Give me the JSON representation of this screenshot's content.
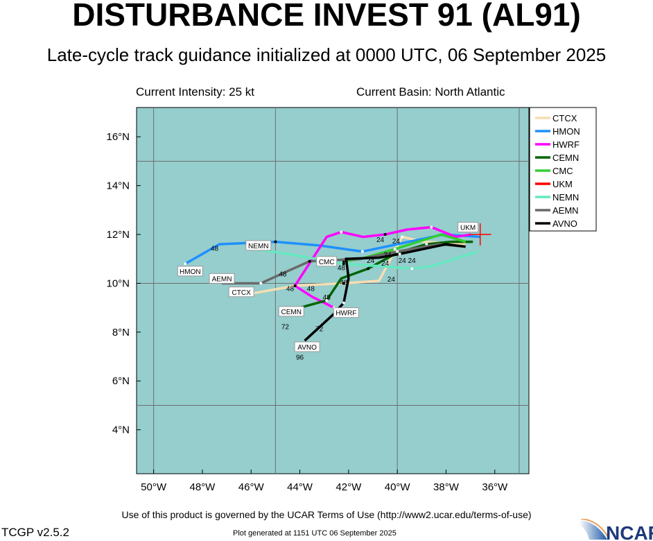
{
  "header": {
    "title": "DISTURBANCE INVEST 91 (AL91)",
    "subtitle": "Late-cycle track guidance initialized at 0000 UTC, 06 September 2025",
    "intensity": "Current Intensity: 25 kt",
    "basin": "Current Basin: North Atlantic"
  },
  "footer": {
    "terms": "Use of this product is governed by the UCAR Terms of Use (http://www2.ucar.edu/terms-of-use)",
    "version": "TCGP v2.5.2",
    "generated": "Plot generated at 1151 UTC   06 September 2025",
    "logo_text": "NCAR"
  },
  "colors": {
    "ocean": "#96cdcd",
    "grid": "#6e6e6e"
  },
  "chart_data": {
    "type": "line",
    "lon_range": [
      -50.7,
      -34.6
    ],
    "lat_range": [
      2.2,
      17.2
    ],
    "x_ticks": [
      {
        "v": -50,
        "label": "50°W"
      },
      {
        "v": -48,
        "label": "48°W"
      },
      {
        "v": -46,
        "label": "46°W"
      },
      {
        "v": -44,
        "label": "44°W"
      },
      {
        "v": -42,
        "label": "42°W"
      },
      {
        "v": -40,
        "label": "40°W"
      },
      {
        "v": -38,
        "label": "38°W"
      },
      {
        "v": -36,
        "label": "36°W"
      }
    ],
    "y_ticks": [
      {
        "v": 16,
        "label": "16°N"
      },
      {
        "v": 14,
        "label": "14°N"
      },
      {
        "v": 12,
        "label": "12°N"
      },
      {
        "v": 10,
        "label": "10°N"
      },
      {
        "v": 8,
        "label": "8°N"
      },
      {
        "v": 6,
        "label": "6°N"
      },
      {
        "v": 4,
        "label": "4°N"
      }
    ],
    "grid_lon": [
      -50,
      -45,
      -40,
      -35
    ],
    "grid_lat": [
      15,
      10,
      5
    ],
    "current_position": {
      "lon": -36.6,
      "lat": 12.0
    },
    "series": [
      {
        "name": "CTCX",
        "color": "#f5deb3",
        "label_at": [
          -46.4,
          9.65
        ],
        "points": [
          [
            -37.2,
            11.6
          ],
          [
            -38.9,
            11.7
          ],
          [
            -39.8,
            11.9
          ],
          [
            -40.75,
            10.1
          ],
          [
            -42.2,
            10.0
          ],
          [
            -44.2,
            9.9
          ],
          [
            -46.4,
            9.5
          ]
        ]
      },
      {
        "name": "HMON",
        "color": "#1e90ff",
        "label_at": [
          -48.5,
          10.5
        ],
        "points": [
          [
            -36.6,
            11.9
          ],
          [
            -38.1,
            12.0
          ],
          [
            -41.43,
            11.3
          ],
          [
            -43.2,
            11.55
          ],
          [
            -45.0,
            11.7
          ],
          [
            -47.3,
            11.6
          ],
          [
            -48.7,
            10.8
          ]
        ]
      },
      {
        "name": "HWRF",
        "color": "#ff00ff",
        "label_at": [
          -42.1,
          8.8
        ],
        "points": [
          [
            -37.0,
            12.0
          ],
          [
            -37.6,
            11.9
          ],
          [
            -38.6,
            12.3
          ],
          [
            -39.6,
            12.2
          ],
          [
            -40.5,
            12.0
          ],
          [
            -41.4,
            11.9
          ],
          [
            -42.3,
            12.1
          ],
          [
            -42.9,
            11.9
          ],
          [
            -44.2,
            9.9
          ],
          [
            -43.5,
            9.45
          ],
          [
            -42.6,
            9.0
          ]
        ]
      },
      {
        "name": "CEMN",
        "color": "#006400",
        "label_at": [
          -44.35,
          8.85
        ],
        "points": [
          [
            -36.9,
            11.7
          ],
          [
            -37.8,
            11.7
          ],
          [
            -38.8,
            11.6
          ],
          [
            -40.0,
            11.25
          ],
          [
            -41.2,
            10.6
          ],
          [
            -42.3,
            10.2
          ],
          [
            -42.9,
            9.3
          ],
          [
            -44.0,
            9.0
          ]
        ]
      },
      {
        "name": "CMC",
        "color": "#32cd32",
        "label_at": [
          -42.9,
          10.9
        ],
        "points": [
          [
            -37.2,
            11.7
          ],
          [
            -38.2,
            12.0
          ],
          [
            -40.1,
            11.4
          ],
          [
            -41.5,
            11.0
          ],
          [
            -42.2,
            10.9
          ]
        ]
      },
      {
        "name": "UKM",
        "color": "#ff0000",
        "label_at": [
          -37.1,
          12.3
        ],
        "points": [
          [
            -36.6,
            12.0
          ]
        ]
      },
      {
        "name": "NEMN",
        "color": "#66e8c0",
        "label_at": [
          -45.7,
          11.55
        ],
        "points": [
          [
            -36.7,
            11.3
          ],
          [
            -38.6,
            10.7
          ],
          [
            -39.4,
            10.6
          ],
          [
            -40.7,
            10.7
          ],
          [
            -42.2,
            10.8
          ],
          [
            -44.5,
            11.2
          ],
          [
            -45.8,
            11.4
          ]
        ]
      },
      {
        "name": "AEMN",
        "color": "#696969",
        "label_at": [
          -47.2,
          10.2
        ],
        "points": [
          [
            -37.2,
            11.5
          ],
          [
            -38.3,
            11.6
          ],
          [
            -40.0,
            11.3
          ],
          [
            -41.5,
            11.0
          ],
          [
            -43.6,
            10.9
          ],
          [
            -44.5,
            10.5
          ],
          [
            -45.6,
            10.0
          ],
          [
            -47.2,
            10.0
          ]
        ]
      },
      {
        "name": "AVNO",
        "color": "#000000",
        "label_at": [
          -43.7,
          7.4
        ],
        "points": [
          [
            -37.2,
            11.5
          ],
          [
            -38.0,
            11.6
          ],
          [
            -39.9,
            11.2
          ],
          [
            -40.75,
            11.05
          ],
          [
            -42.1,
            11.0
          ],
          [
            -42.0,
            10.2
          ],
          [
            -42.2,
            9.2
          ],
          [
            -42.6,
            8.75
          ],
          [
            -43.2,
            8.2
          ],
          [
            -43.8,
            7.65
          ]
        ]
      }
    ],
    "hour_labels": [
      {
        "text": "48",
        "lon": -47.5,
        "lat": 11.45
      },
      {
        "text": "48",
        "lon": -44.7,
        "lat": 10.4
      },
      {
        "text": "48",
        "lon": -44.4,
        "lat": 9.8
      },
      {
        "text": "48",
        "lon": -43.55,
        "lat": 9.8
      },
      {
        "text": "48",
        "lon": -42.9,
        "lat": 9.45
      },
      {
        "text": "48",
        "lon": -42.3,
        "lat": 10.65
      },
      {
        "text": "48",
        "lon": -42.2,
        "lat": 10.05
      },
      {
        "text": "72",
        "lon": -44.6,
        "lat": 8.55
      },
      {
        "text": "72",
        "lon": -43.2,
        "lat": 8.15
      },
      {
        "text": "96",
        "lon": -44.0,
        "lat": 7.3
      },
      {
        "text": "24",
        "lon": -40.7,
        "lat": 11.8
      },
      {
        "text": "24",
        "lon": -40.05,
        "lat": 11.75
      },
      {
        "text": "24",
        "lon": -40.4,
        "lat": 11.5
      },
      {
        "text": "24",
        "lon": -40.5,
        "lat": 11.15
      },
      {
        "text": "24",
        "lon": -40.7,
        "lat": 10.95
      },
      {
        "text": "24",
        "lon": -40.2,
        "lat": 10.95
      },
      {
        "text": "24",
        "lon": -39.8,
        "lat": 10.95
      },
      {
        "text": "24",
        "lon": -40.25,
        "lat": 10.5
      }
    ]
  }
}
